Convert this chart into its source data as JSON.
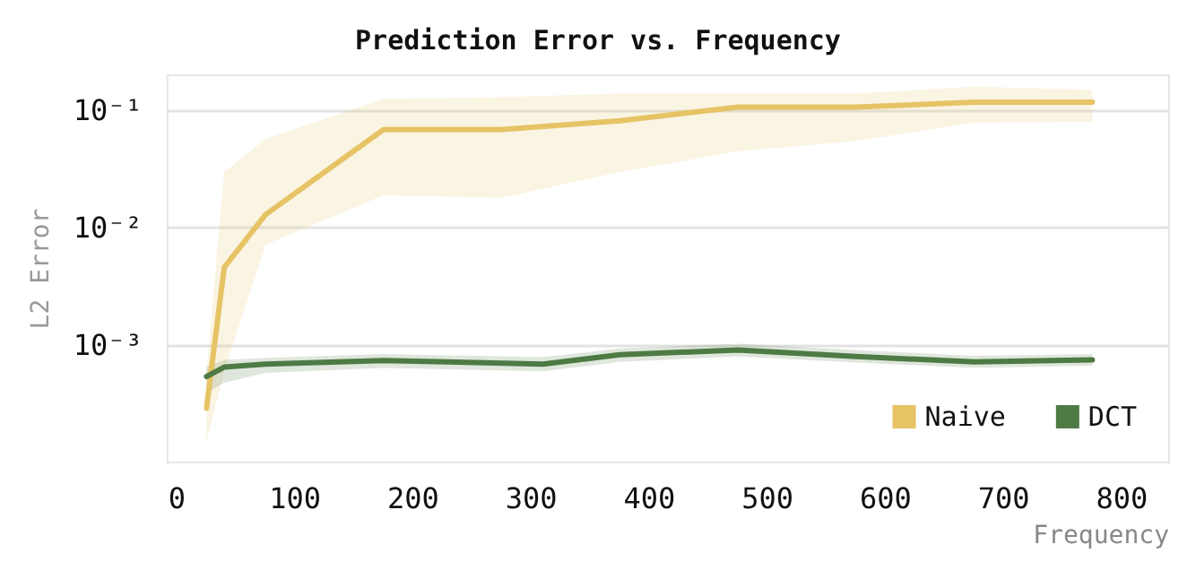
{
  "chart_data": {
    "type": "line",
    "title": "Prediction Error vs. Frequency",
    "xlabel": "Frequency",
    "ylabel": "L2 Error",
    "xlim": [
      -8,
      840
    ],
    "xticks": [
      0,
      100,
      200,
      300,
      400,
      500,
      600,
      700,
      800
    ],
    "ylim": [
      0.0001,
      0.2
    ],
    "yticks": [
      {
        "value": 0.001,
        "label": "10⁻³"
      },
      {
        "value": 0.01,
        "label": "10⁻²"
      },
      {
        "value": 0.1,
        "label": "10⁻¹"
      }
    ],
    "log": "y",
    "grid": "y",
    "legend": "bottom right",
    "marker": "none",
    "line_style": "solid",
    "series": [
      {
        "name": "Naive",
        "color": "#e6c365",
        "x": [
          25,
          40,
          75,
          175,
          275,
          375,
          475,
          575,
          675,
          775
        ],
        "values": [
          0.00029,
          0.0046,
          0.013,
          0.069,
          0.069,
          0.082,
          0.107,
          0.107,
          0.118,
          0.118
        ],
        "lower": [
          0.00015,
          0.0006,
          0.0072,
          0.019,
          0.018,
          0.03,
          0.045,
          0.055,
          0.079,
          0.08
        ],
        "upper": [
          0.0006,
          0.03,
          0.057,
          0.126,
          0.13,
          0.14,
          0.14,
          0.14,
          0.16,
          0.15
        ]
      },
      {
        "name": "DCT",
        "color": "#4e7a44",
        "x": [
          25,
          40,
          75,
          175,
          310,
          375,
          475,
          575,
          675,
          775
        ],
        "values": [
          0.00054,
          0.00065,
          0.00069,
          0.00074,
          0.00069,
          0.00083,
          0.00091,
          0.0008,
          0.00072,
          0.00075
        ],
        "lower": [
          0.00039,
          0.00048,
          0.00058,
          0.00064,
          0.0006,
          0.00072,
          0.0008,
          0.00071,
          0.00064,
          0.00067
        ],
        "upper": [
          0.00065,
          0.00075,
          0.00078,
          0.00084,
          0.00079,
          0.00094,
          0.00103,
          0.00091,
          0.00081,
          0.00084
        ]
      }
    ]
  }
}
